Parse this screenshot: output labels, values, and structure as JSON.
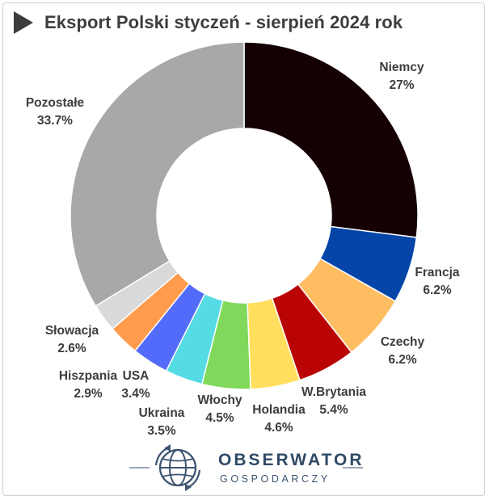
{
  "chart_data": {
    "type": "pie",
    "title": "Eksport Polski styczeń - sierpień 2024 rok",
    "categories": [
      "Niemcy",
      "Francja",
      "Czechy",
      "W.Brytania",
      "Holandia",
      "Włochy",
      "Ukraina",
      "USA",
      "Hiszpania",
      "Słowacja",
      "Pozostałe"
    ],
    "values": [
      27,
      6.2,
      6.2,
      5.4,
      4.6,
      4.5,
      3.5,
      3.4,
      2.9,
      2.6,
      33.7
    ],
    "value_labels": [
      "27%",
      "6.2%",
      "6.2%",
      "5.4%",
      "4.6%",
      "4.5%",
      "3.5%",
      "3.4%",
      "2.9%",
      "2.6%",
      "33.7%"
    ],
    "colors": [
      "#150103",
      "#0645a8",
      "#ffbd62",
      "#ba0404",
      "#ffdf5d",
      "#80d95b",
      "#55dbe4",
      "#536bfb",
      "#ff9b4c",
      "#d9d9d9",
      "#a8a8a8"
    ],
    "donut": true,
    "legend": "none"
  },
  "footer": {
    "brand": "OBSERWATOR",
    "subtitle": "GOSPODARCZY",
    "logo_icon": "globe-icon"
  }
}
